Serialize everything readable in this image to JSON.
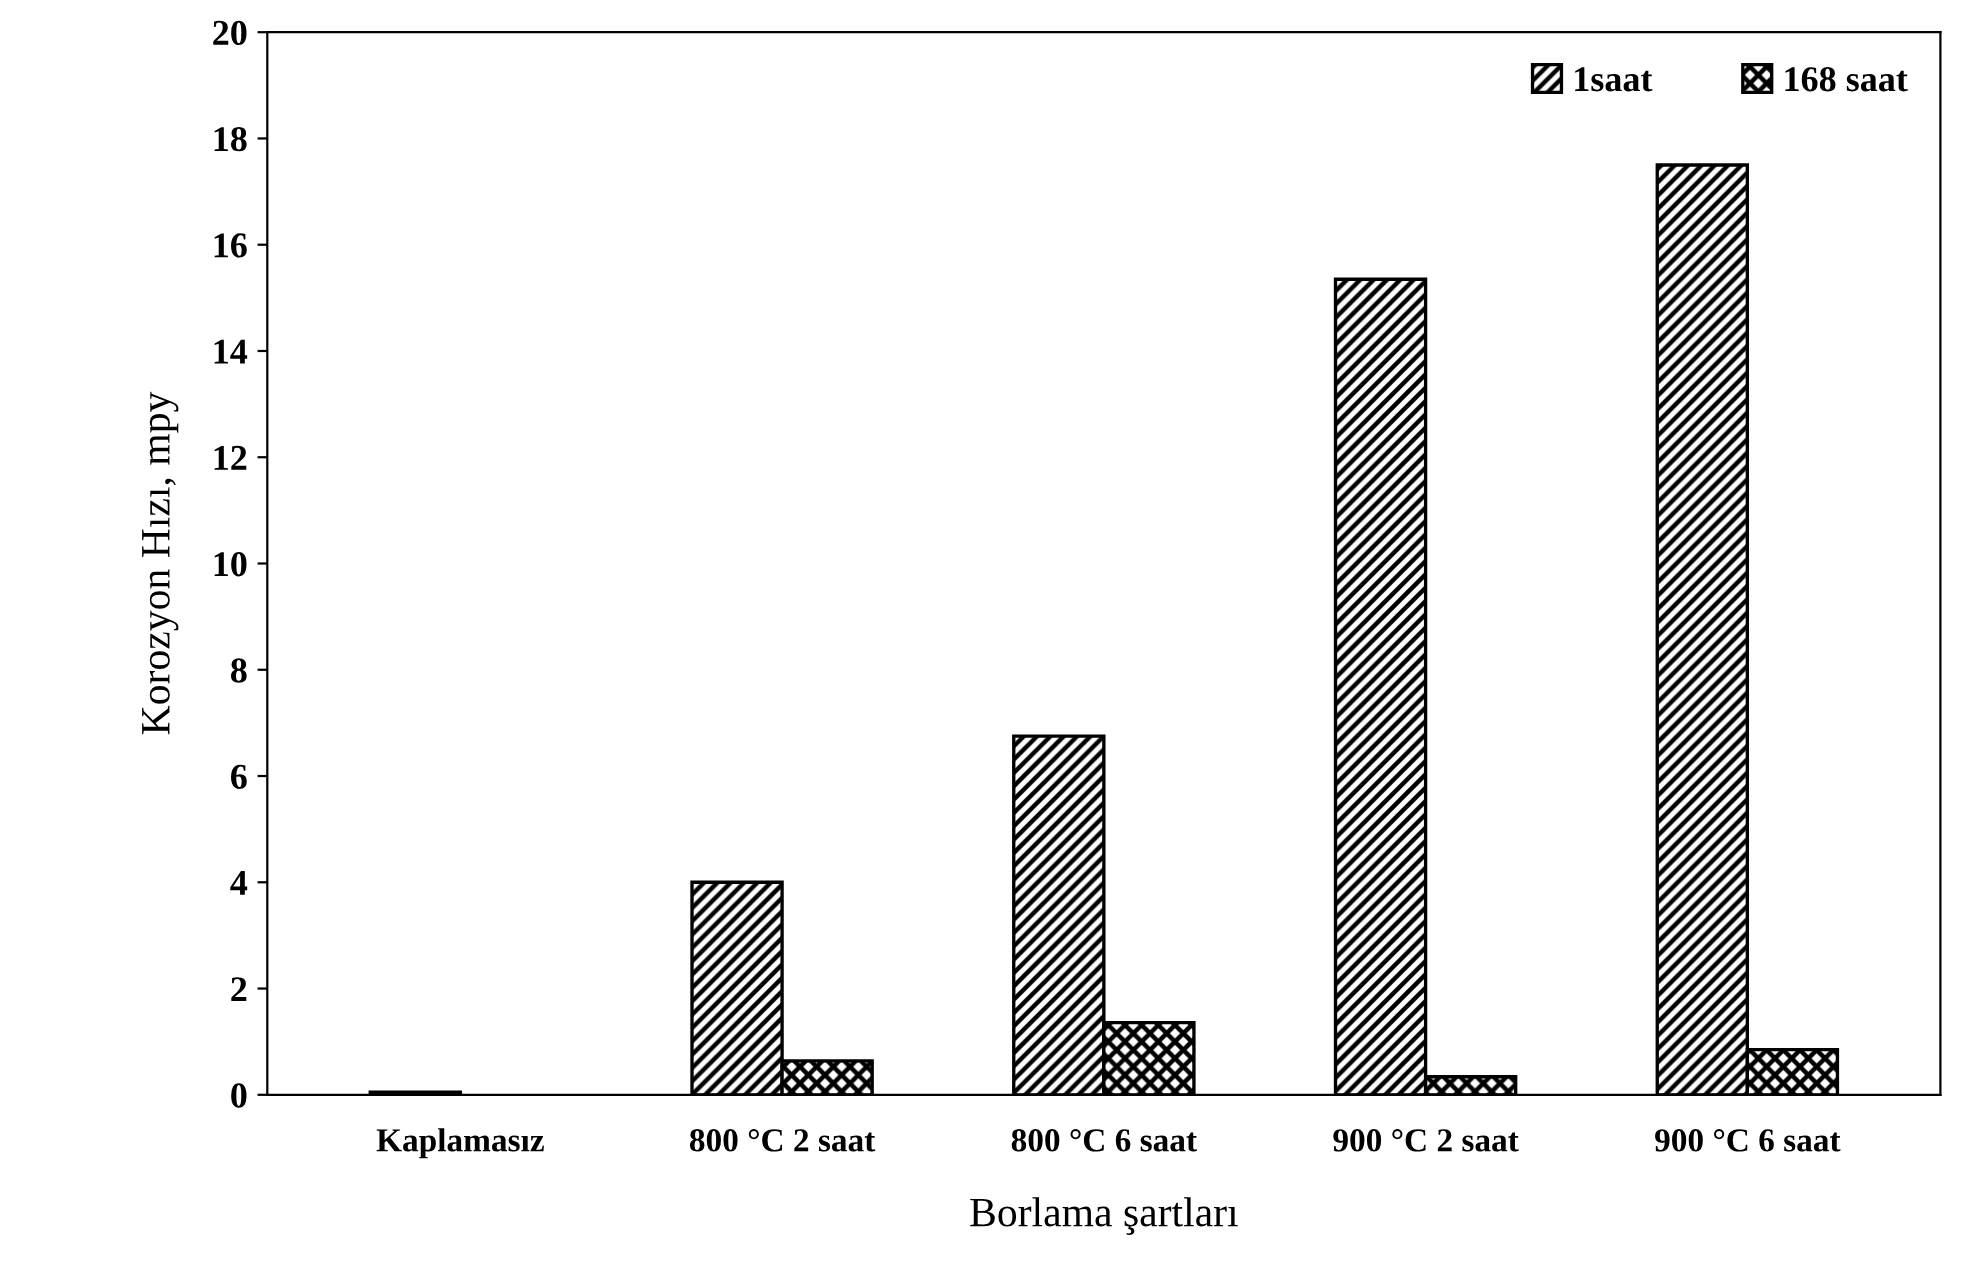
{
  "chart_data": {
    "type": "bar",
    "xlabel": "Borlama şartları",
    "ylabel": "Korozyon Hızı, mpy",
    "categories": [
      "Kaplamasız",
      "800 °C 2 saat",
      "800 °C 6 saat",
      "900 °C 2 saat",
      "900 °C 6 saat"
    ],
    "series": [
      {
        "name": "1saat",
        "color": "#000000",
        "values": [
          0.05,
          4.0,
          6.75,
          15.35,
          17.5
        ]
      },
      {
        "name": "168 saat",
        "color": "#000000",
        "values": [
          null,
          0.64,
          1.36,
          0.34,
          0.85
        ]
      }
    ],
    "ylim": [
      0,
      20
    ],
    "yticks": [
      0,
      2,
      4,
      6,
      8,
      10,
      12,
      14,
      16,
      18,
      20
    ],
    "grid": false,
    "legend": "top right"
  }
}
